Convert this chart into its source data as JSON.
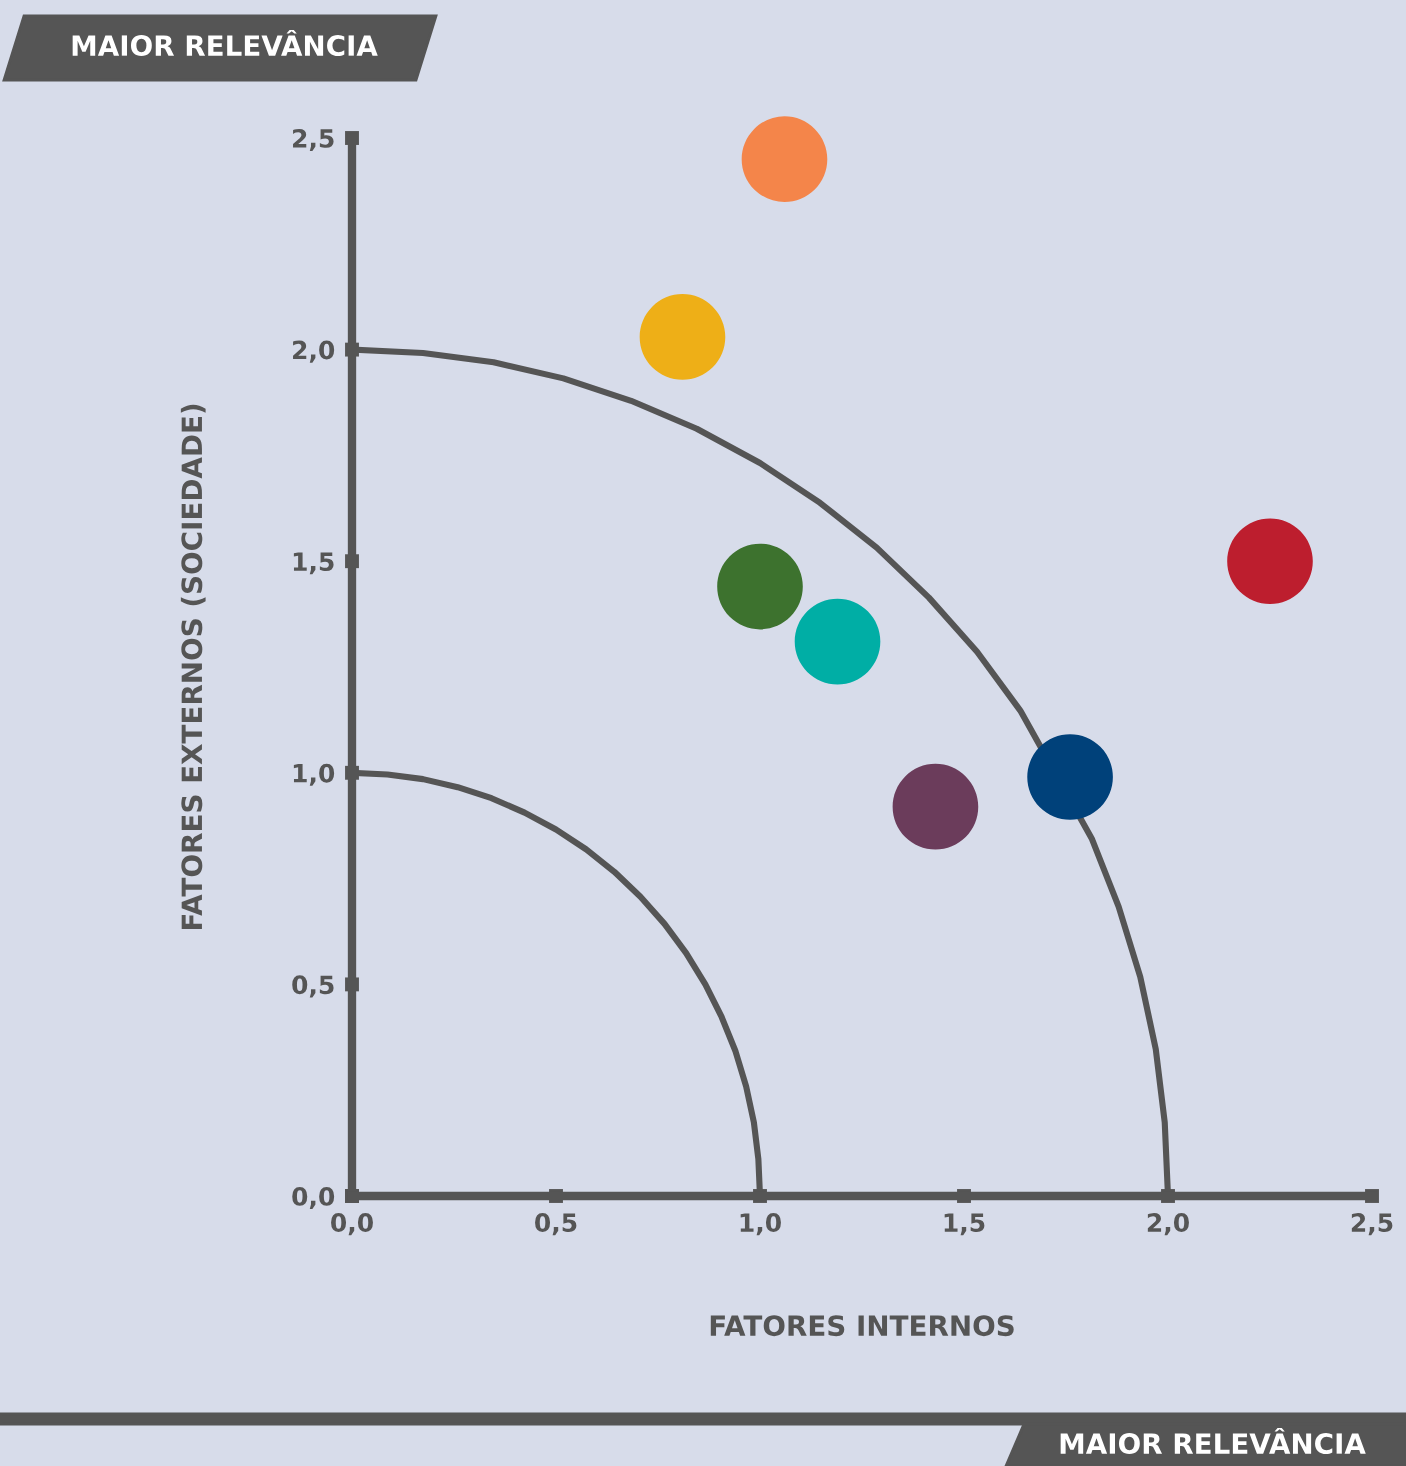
{
  "chart_data": {
    "type": "scatter",
    "xlabel": "FATORES INTERNOS",
    "ylabel": "FATORES EXTERNOS (SOCIEDADE)",
    "annotations": [
      "MAIOR RELEVÂNCIA",
      "MAIOR RELEVÂNCIA"
    ],
    "xlim": [
      0,
      2.5
    ],
    "ylim": [
      0,
      2.5
    ],
    "xticks": [
      {
        "value": 0,
        "label": "0,0"
      },
      {
        "value": 0.5,
        "label": "0,5"
      },
      {
        "value": 1,
        "label": "1,0"
      },
      {
        "value": 1.5,
        "label": "1,5"
      },
      {
        "value": 2,
        "label": "2,0"
      },
      {
        "value": 2.5,
        "label": "2,5"
      }
    ],
    "yticks": [
      {
        "value": 0,
        "label": "0,0"
      },
      {
        "value": 0.5,
        "label": "0,5"
      },
      {
        "value": 1,
        "label": "1,0"
      },
      {
        "value": 1.5,
        "label": "1,5"
      },
      {
        "value": 2,
        "label": "2,0"
      },
      {
        "value": 2.5,
        "label": "2,5"
      }
    ],
    "grid": false,
    "marker": "circle",
    "series": [
      {
        "type": "line",
        "marker": "none",
        "color": "#555555",
        "x": [
          0,
          0.087,
          0.174,
          0.259,
          0.342,
          0.423,
          0.5,
          0.574,
          0.643,
          0.707,
          0.766,
          0.819,
          0.866,
          0.906,
          0.94,
          0.966,
          0.985,
          0.996,
          1
        ],
        "values": [
          1,
          0.996,
          0.985,
          0.966,
          0.94,
          0.906,
          0.866,
          0.819,
          0.766,
          0.707,
          0.643,
          0.574,
          0.5,
          0.423,
          0.342,
          0.259,
          0.174,
          0.087,
          0
        ]
      },
      {
        "type": "line",
        "marker": "none",
        "color": "#555555",
        "x": [
          0,
          0.174,
          0.347,
          0.518,
          0.684,
          0.845,
          1.0,
          1.147,
          1.286,
          1.414,
          1.532,
          1.638,
          1.813,
          1.879,
          1.932,
          1.97,
          1.992,
          2
        ],
        "values": [
          2,
          1.992,
          1.97,
          1.932,
          1.879,
          1.813,
          1.732,
          1.638,
          1.532,
          1.414,
          1.286,
          1.147,
          0.845,
          0.684,
          0.518,
          0.347,
          0.174,
          0
        ]
      },
      {
        "x": [
          1.06,
          0.81,
          1.0,
          1.19,
          1.43,
          1.76,
          2.25
        ],
        "values": [
          2.45,
          2.03,
          1.44,
          1.31,
          0.92,
          0.99,
          1.5
        ],
        "colors": [
          "#f4854a",
          "#eeaf17",
          "#3d722e",
          "#00aea5",
          "#6b3c5b",
          "#00417a",
          "#bd1e2e"
        ]
      }
    ]
  }
}
